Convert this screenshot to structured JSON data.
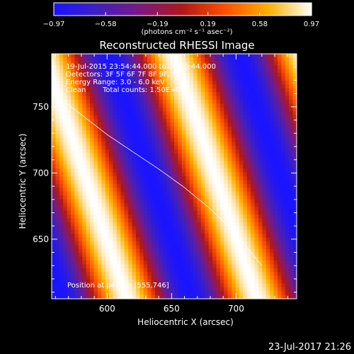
{
  "colorbar": {
    "min": -0.97,
    "max": 0.97,
    "tick_values": [
      -0.97,
      -0.58,
      -0.19,
      0.19,
      0.58,
      0.97
    ],
    "tick_labels": [
      "−0.97",
      "−0.58",
      "−0.19",
      "0.19",
      "0.58",
      "0.97"
    ],
    "unit_label": "(photons cm⁻² s⁻¹ asec⁻²)",
    "colors": [
      "#1a14ff",
      "#4020c0",
      "#7a1a80",
      "#b01818",
      "#ff5000",
      "#ffb000",
      "#ffffff"
    ]
  },
  "chart_data": {
    "type": "heatmap",
    "title": "Reconstructed RHESSI Image",
    "xlabel": "Heliocentric X (arcsec)",
    "ylabel": "Heliocentric Y (arcsec)",
    "xlim": [
      557,
      747
    ],
    "ylim": [
      605,
      790
    ],
    "xticks": [
      600,
      650,
      700
    ],
    "yticks": [
      650,
      700,
      750
    ],
    "pattern": {
      "description": "diagonal fringe pattern",
      "stripe_tilt_ratio": 0.35,
      "period_x_arcsec": 101,
      "crest_x_at_y_700": [
        582,
        683
      ],
      "value_range": [
        -0.97,
        0.97
      ]
    },
    "limb_curve": {
      "x": [
        557,
        580,
        600,
        620,
        640,
        660,
        680,
        700,
        720
      ],
      "y": [
        761,
        744,
        729,
        716,
        703,
        689,
        673,
        654,
        630
      ]
    },
    "annotations": {
      "time_range": "19-Jul-2015 23:54:44.000 to 00:00:44.000",
      "detectors": "Detectors: 3F 5F 6F 7F 8F 9F, All",
      "energy": "Energy Range: 3.0 - 6.0 keV",
      "method": "Clean",
      "counts": "Total counts: 1.50E+05",
      "position_label": "Position at peak = [555,746]"
    }
  },
  "footer_timestamp": "23-Jul-2017 21:26"
}
